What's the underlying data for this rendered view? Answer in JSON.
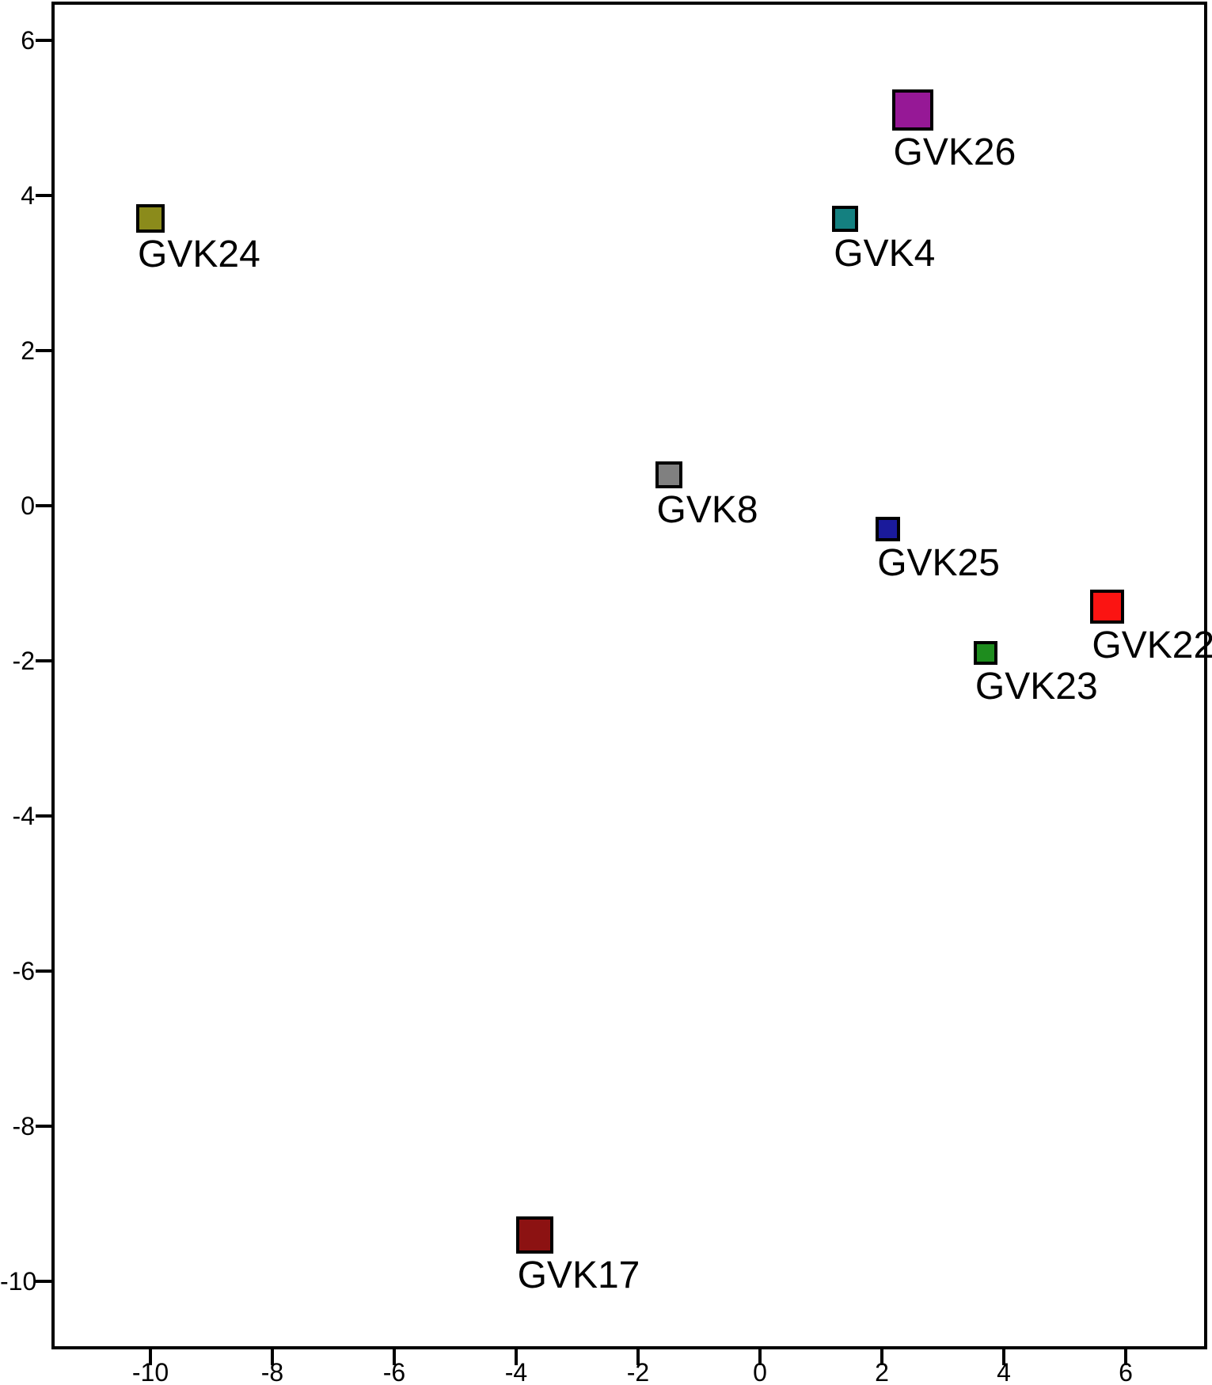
{
  "chart_data": {
    "type": "scatter",
    "title": "",
    "xlabel": "",
    "ylabel": "",
    "marker_shape": "square",
    "grid": false,
    "legend": "none",
    "xlim": [
      -11.6,
      7.3
    ],
    "ylim": [
      -10.9,
      6.5
    ],
    "x_ticks": [
      "-10",
      "-8",
      "-6",
      "-4",
      "-2",
      "0",
      "2",
      "4",
      "6"
    ],
    "y_ticks": [
      "6",
      "4",
      "2",
      "0",
      "-2",
      "-4",
      "-6",
      "-8",
      "-10"
    ],
    "x_tick_values": [
      -10,
      -8,
      -6,
      -4,
      -2,
      0,
      2,
      4,
      6
    ],
    "y_tick_values": [
      6,
      4,
      2,
      0,
      -2,
      -4,
      -6,
      -8,
      -10
    ],
    "axis_color": "#000000",
    "background_color": "#ffffff",
    "points": [
      {
        "label": "GVK24",
        "x": -10.0,
        "y": 3.7,
        "color": "#8B8B1B",
        "size": 36
      },
      {
        "label": "GVK26",
        "x": 2.5,
        "y": 5.1,
        "color": "#961896",
        "size": 52
      },
      {
        "label": "GVK4",
        "x": 1.4,
        "y": 3.7,
        "color": "#148080",
        "size": 33
      },
      {
        "label": "GVK8",
        "x": -1.5,
        "y": 0.4,
        "color": "#808080",
        "size": 34
      },
      {
        "label": "GVK25",
        "x": 2.1,
        "y": -0.3,
        "color": "#1A1A9B",
        "size": 31
      },
      {
        "label": "GVK22",
        "x": 5.7,
        "y": -1.3,
        "color": "#FB1412",
        "size": 43
      },
      {
        "label": "GVK23",
        "x": 3.7,
        "y": -1.9,
        "color": "#1E8C1E",
        "size": 30
      },
      {
        "label": "GVK17",
        "x": -3.7,
        "y": -9.4,
        "color": "#8C1212",
        "size": 47
      }
    ]
  }
}
